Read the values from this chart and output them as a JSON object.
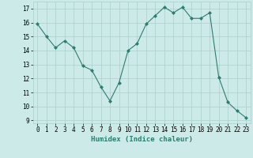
{
  "x": [
    0,
    1,
    2,
    3,
    4,
    5,
    6,
    7,
    8,
    9,
    10,
    11,
    12,
    13,
    14,
    15,
    16,
    17,
    18,
    19,
    20,
    21,
    22,
    23
  ],
  "y": [
    15.9,
    15.0,
    14.2,
    14.7,
    14.2,
    12.9,
    12.6,
    11.4,
    10.4,
    11.7,
    14.0,
    14.5,
    15.9,
    16.5,
    17.1,
    16.7,
    17.1,
    16.3,
    16.3,
    16.7,
    12.1,
    10.3,
    9.7,
    9.2
  ],
  "line_color": "#2e7d6e",
  "marker": "D",
  "marker_size": 2,
  "bg_color": "#cceae7",
  "grid_color": "#aacfcc",
  "xlabel": "Humidex (Indice chaleur)",
  "xlim": [
    -0.5,
    23.5
  ],
  "ylim": [
    8.8,
    17.5
  ],
  "yticks": [
    9,
    10,
    11,
    12,
    13,
    14,
    15,
    16,
    17
  ],
  "xticks": [
    0,
    1,
    2,
    3,
    4,
    5,
    6,
    7,
    8,
    9,
    10,
    11,
    12,
    13,
    14,
    15,
    16,
    17,
    18,
    19,
    20,
    21,
    22,
    23
  ],
  "tick_fontsize": 5.5,
  "label_fontsize": 6.5
}
